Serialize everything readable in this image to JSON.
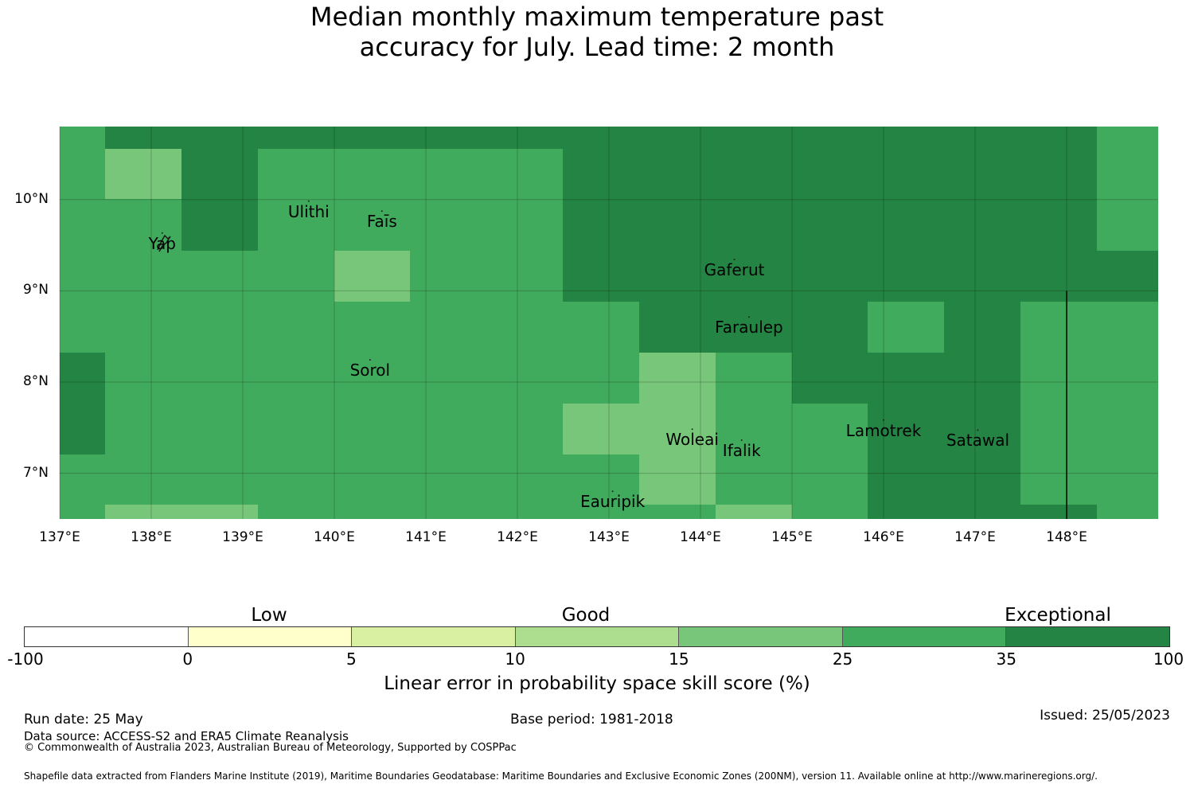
{
  "title": {
    "line1": "Median monthly maximum temperature past",
    "line2": "accuracy for July. Lead time: 2 month"
  },
  "map": {
    "lon_range": [
      137.0,
      149.0
    ],
    "lat_range": [
      6.5,
      10.8
    ],
    "lon_ticks": [
      "137°E",
      "138°E",
      "139°E",
      "140°E",
      "141°E",
      "142°E",
      "143°E",
      "144°E",
      "145°E",
      "146°E",
      "147°E",
      "148°E"
    ],
    "lat_ticks": [
      "10°N",
      "9°N",
      "8°N",
      "7°N"
    ],
    "grid": true,
    "colors": {
      "c15_25": "#78c679",
      "c25_35": "#41ab5d",
      "c35_100": "#238443"
    },
    "places": [
      {
        "name": "Ulithi",
        "lon": 139.72,
        "lat": 9.87
      },
      {
        "name": "Faīs",
        "lon": 140.52,
        "lat": 9.76
      },
      {
        "name": "Yap",
        "lon": 138.12,
        "lat": 9.52
      },
      {
        "name": "Gaferut",
        "lon": 144.37,
        "lat": 9.23
      },
      {
        "name": "Faraulep",
        "lon": 144.53,
        "lat": 8.6
      },
      {
        "name": "Sorol",
        "lon": 140.39,
        "lat": 8.13
      },
      {
        "name": "Lamotrek",
        "lon": 146.0,
        "lat": 7.47
      },
      {
        "name": "Woleai",
        "lon": 143.91,
        "lat": 7.37
      },
      {
        "name": "Satawal",
        "lon": 147.03,
        "lat": 7.36
      },
      {
        "name": "Ifalik",
        "lon": 144.45,
        "lat": 7.25
      },
      {
        "name": "Eauripik",
        "lon": 143.04,
        "lat": 6.69
      }
    ],
    "boundary_line": {
      "lon": 148.0,
      "lat_from": 6.5,
      "lat_to": 9.0
    }
  },
  "legend": {
    "categories": [
      "Low",
      "Good",
      "Exceptional"
    ],
    "ticks": [
      "-100",
      "0",
      "5",
      "10",
      "15",
      "25",
      "35",
      "100"
    ],
    "colors": [
      "#ffffff",
      "#ffffcc",
      "#d9f0a3",
      "#addd8e",
      "#78c679",
      "#41ab5d",
      "#238443"
    ],
    "label": "Linear error in probability space skill score (%)"
  },
  "footer": {
    "run_date": "Run date: 25 May",
    "base_period": "Base period: 1981-2018",
    "issued": "Issued: 25/05/2023",
    "data_source": "Data source: ACCESS-S2 and ERA5 Climate Reanalysis",
    "copyright": "© Commonwealth of Australia 2023, Australian Bureau of Meteorology, Supported by COSPPac",
    "shapefile": "Shapefile data extracted from Flanders Marine Institute (2019), Maritime Boundaries Geodatabase: Maritime Boundaries and Exclusive Economic Zones (200NM), version 11. Available online at http://www.marineregions.org/."
  }
}
